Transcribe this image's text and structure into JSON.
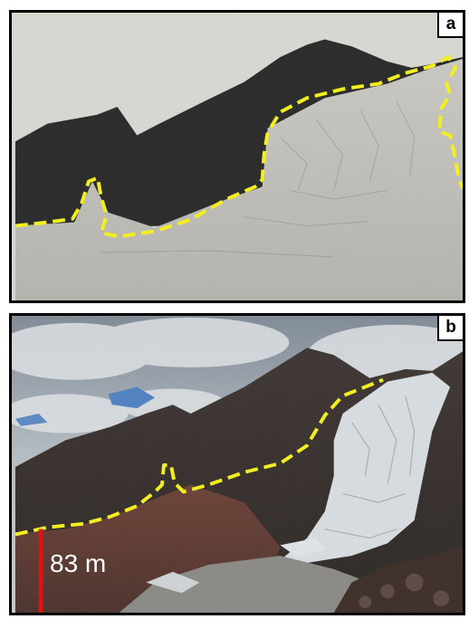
{
  "panels": [
    {
      "label": "a"
    },
    {
      "label": "b",
      "scale_bar_label": "83 m"
    }
  ],
  "colors": {
    "outline": "#f2ee20",
    "scale_bar": "#e01212"
  }
}
